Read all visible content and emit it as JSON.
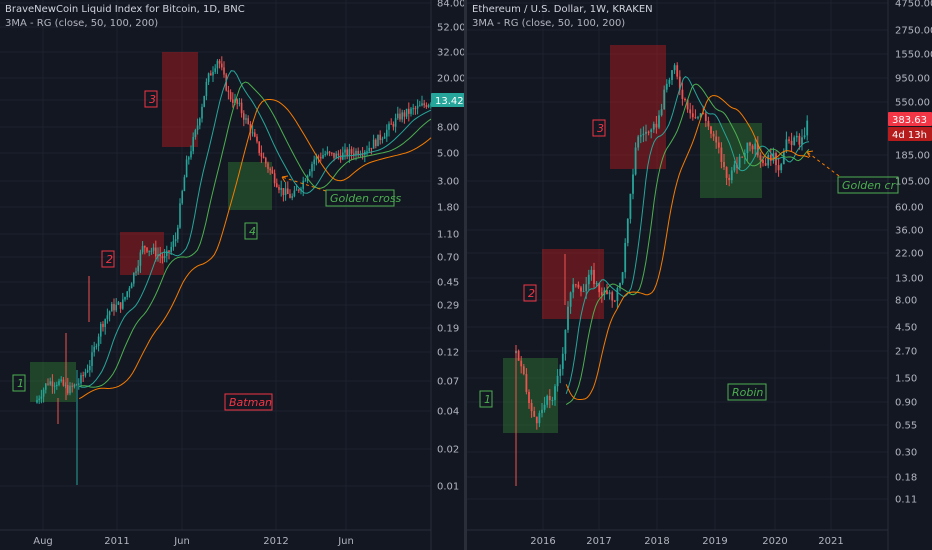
{
  "colors": {
    "background": "#131722",
    "grid": "#1e222d",
    "up": "#26a69a",
    "down": "#ef5350",
    "ma_fast": "#26a69a",
    "ma_mid": "#4caf50",
    "ma_slow": "#f57c00",
    "red_box": "#b71c1c",
    "green_box": "#2e7d32",
    "last_price_left": "#26a69a",
    "last_price_right": "#f23645"
  },
  "left_chart": {
    "title": "BraveNewCoin Liquid Index for Bitcoin, 1D, BNC",
    "indicator": "3MA - RG (close, 50, 100, 200)",
    "price_badge": "13.42",
    "y_ticks": [
      "84.00",
      "52.00",
      "32.00",
      "20.00",
      "13.00",
      "8.00",
      "5.00",
      "3.00",
      "1.80",
      "1.10",
      "0.70",
      "0.45",
      "0.29",
      "0.19",
      "0.12",
      "0.07",
      "0.04",
      "0.02",
      "0.01"
    ],
    "x_ticks": [
      "Aug",
      "2011",
      "Jun",
      "2012",
      "Jun"
    ],
    "annotations": [
      {
        "text": "1",
        "color": "green"
      },
      {
        "text": "2",
        "color": "red"
      },
      {
        "text": "3",
        "color": "red"
      },
      {
        "text": "4",
        "color": "green"
      },
      {
        "text": "Golden cross",
        "color": "green"
      },
      {
        "text": "Batman",
        "color": "red"
      }
    ]
  },
  "right_chart": {
    "title": "Ethereum / U.S. Dollar, 1W, KRAKEN",
    "indicator": "3MA - RG (close, 50, 100, 200)",
    "price_badge": "383.63",
    "countdown_badge": "4d 13h",
    "y_ticks": [
      "4750.00",
      "2750.00",
      "1550.00",
      "950.00",
      "550.00",
      "185.00",
      "105.00",
      "60.00",
      "36.00",
      "22.00",
      "13.00",
      "8.00",
      "4.50",
      "2.70",
      "1.50",
      "0.90",
      "0.55",
      "0.30",
      "0.18",
      "0.11"
    ],
    "x_ticks": [
      "2016",
      "2017",
      "2018",
      "2019",
      "2020",
      "2021"
    ],
    "annotations": [
      {
        "text": "1",
        "color": "green"
      },
      {
        "text": "2",
        "color": "red"
      },
      {
        "text": "3",
        "color": "red"
      },
      {
        "text": "Golden cr",
        "color": "green"
      },
      {
        "text": "Robin",
        "color": "green"
      }
    ]
  },
  "chart_data": [
    {
      "type": "line",
      "title": "BraveNewCoin Liquid Index for Bitcoin, 1D, BNC",
      "y_scale": "log",
      "ylim": [
        0.01,
        84
      ],
      "x_ticks": [
        "Aug",
        "2011",
        "Jun",
        "2012",
        "Jun"
      ],
      "series": [
        {
          "values": [
            0.05,
            0.07,
            0.07,
            0.06,
            0.07,
            0.1,
            0.2,
            0.28,
            0.3,
            0.5,
            0.9,
            0.8,
            0.7,
            1.0,
            4.0,
            8.0,
            20.0,
            30.0,
            15.0,
            12.0,
            8.0,
            5.0,
            3.5,
            2.5,
            2.2,
            3.0,
            4.5,
            5.0,
            4.8,
            5.0,
            5.2,
            5.5,
            6.5,
            8.0,
            10.0,
            11.0,
            12.0,
            13.42
          ]
        }
      ]
    },
    {
      "type": "line",
      "title": "Ethereum / U.S. Dollar, 1W, KRAKEN",
      "y_scale": "log",
      "ylim": [
        0.11,
        4750
      ],
      "x_ticks": [
        "2016",
        "2017",
        "2018",
        "2019",
        "2020",
        "2021"
      ],
      "series": [
        {
          "values": [
            2.7,
            1.5,
            0.7,
            0.6,
            0.9,
            1.0,
            2.0,
            8.0,
            12.0,
            10.0,
            14.0,
            10.0,
            9.0,
            8.0,
            12.0,
            50.0,
            250.0,
            300.0,
            280.0,
            400.0,
            800.0,
            1200.0,
            700.0,
            500.0,
            400.0,
            450.0,
            280.0,
            200.0,
            110.0,
            130.0,
            170.0,
            250.0,
            200.0,
            150.0,
            180.0,
            140.0,
            230.0,
            250.0,
            240.0,
            383.63
          ]
        }
      ]
    }
  ]
}
